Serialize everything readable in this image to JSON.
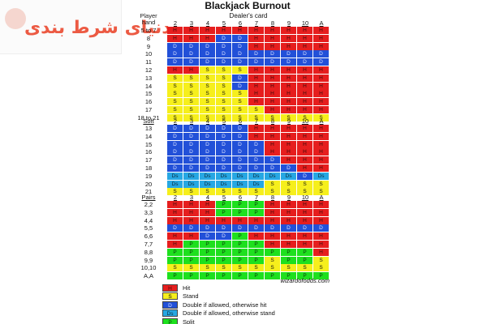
{
  "logo": {
    "text": "دنیای شرط بندی"
  },
  "title": "Blackjack Burnout",
  "dealer_label": "Dealer's card",
  "player_label": [
    "Player",
    "hand"
  ],
  "dealer_cards": [
    "2",
    "3",
    "4",
    "5",
    "6",
    "7",
    "8",
    "9",
    "10",
    "A"
  ],
  "hard": {
    "rows": [
      {
        "label": "5 to 7",
        "cells": [
          "H",
          "H",
          "H",
          "H",
          "H",
          "H",
          "H",
          "H",
          "H",
          "H"
        ]
      },
      {
        "label": "8",
        "cells": [
          "H",
          "H",
          "H",
          "D",
          "D",
          "H",
          "H",
          "H",
          "H",
          "H"
        ]
      },
      {
        "label": "9",
        "cells": [
          "D",
          "D",
          "D",
          "D",
          "D",
          "H",
          "H",
          "H",
          "H",
          "H"
        ]
      },
      {
        "label": "10",
        "cells": [
          "D",
          "D",
          "D",
          "D",
          "D",
          "D",
          "D",
          "D",
          "D",
          "D"
        ]
      },
      {
        "label": "11",
        "cells": [
          "D",
          "D",
          "D",
          "D",
          "D",
          "D",
          "D",
          "D",
          "D",
          "D"
        ]
      },
      {
        "label": "12",
        "cells": [
          "H",
          "H",
          "S",
          "S",
          "S",
          "H",
          "H",
          "H",
          "H",
          "H"
        ]
      },
      {
        "label": "13",
        "cells": [
          "S",
          "S",
          "S",
          "S",
          "D",
          "H",
          "H",
          "H",
          "H",
          "H"
        ]
      },
      {
        "label": "14",
        "cells": [
          "S",
          "S",
          "S",
          "S",
          "D",
          "H",
          "H",
          "H",
          "H",
          "H"
        ]
      },
      {
        "label": "15",
        "cells": [
          "S",
          "S",
          "S",
          "S",
          "S",
          "H",
          "H",
          "H",
          "H",
          "H"
        ]
      },
      {
        "label": "16",
        "cells": [
          "S",
          "S",
          "S",
          "S",
          "S",
          "H",
          "H",
          "H",
          "H",
          "H"
        ]
      },
      {
        "label": "17",
        "cells": [
          "S",
          "S",
          "S",
          "S",
          "S",
          "S",
          "H",
          "H",
          "H",
          "H"
        ]
      },
      {
        "label": "18 to 21",
        "cells": [
          "S",
          "S",
          "S",
          "S",
          "S",
          "S",
          "S",
          "S",
          "S",
          "S"
        ]
      }
    ]
  },
  "soft": {
    "title": "Soft",
    "rows": [
      {
        "label": "13",
        "cells": [
          "D",
          "D",
          "D",
          "D",
          "D",
          "H",
          "H",
          "H",
          "H",
          "H"
        ]
      },
      {
        "label": "14",
        "cells": [
          "D",
          "D",
          "D",
          "D",
          "D",
          "H",
          "H",
          "H",
          "H",
          "H"
        ]
      },
      {
        "label": "15",
        "cells": [
          "D",
          "D",
          "D",
          "D",
          "D",
          "D",
          "H",
          "H",
          "H",
          "H"
        ]
      },
      {
        "label": "16",
        "cells": [
          "D",
          "D",
          "D",
          "D",
          "D",
          "D",
          "H",
          "H",
          "H",
          "H"
        ]
      },
      {
        "label": "17",
        "cells": [
          "D",
          "D",
          "D",
          "D",
          "D",
          "D",
          "D",
          "H",
          "H",
          "H"
        ]
      },
      {
        "label": "18",
        "cells": [
          "D",
          "D",
          "D",
          "D",
          "D",
          "D",
          "D",
          "D",
          "H",
          "H"
        ]
      },
      {
        "label": "19",
        "cells": [
          "Ds",
          "Ds",
          "Ds",
          "Ds",
          "Ds",
          "Ds",
          "Ds",
          "Ds",
          "D",
          "Ds"
        ]
      },
      {
        "label": "20",
        "cells": [
          "Ds",
          "Ds",
          "Ds",
          "Ds",
          "Ds",
          "Ds",
          "S",
          "S",
          "S",
          "S"
        ]
      },
      {
        "label": "21",
        "cells": [
          "S",
          "S",
          "S",
          "S",
          "S",
          "S",
          "S",
          "S",
          "S",
          "S"
        ]
      }
    ]
  },
  "pairs": {
    "title": "Pairs",
    "rows": [
      {
        "label": "2,2",
        "cells": [
          "H",
          "H",
          "H",
          "P",
          "P",
          "P",
          "H",
          "H",
          "H",
          "H"
        ]
      },
      {
        "label": "3,3",
        "cells": [
          "H",
          "H",
          "H",
          "P",
          "P",
          "P",
          "H",
          "H",
          "H",
          "H"
        ]
      },
      {
        "label": "4,4",
        "cells": [
          "H",
          "H",
          "H",
          "H",
          "H",
          "H",
          "H",
          "H",
          "H",
          "H"
        ]
      },
      {
        "label": "5,5",
        "cells": [
          "D",
          "D",
          "D",
          "D",
          "D",
          "D",
          "D",
          "D",
          "D",
          "D"
        ]
      },
      {
        "label": "6,6",
        "cells": [
          "H",
          "H",
          "D",
          "D",
          "P",
          "H",
          "H",
          "H",
          "H",
          "H"
        ]
      },
      {
        "label": "7,7",
        "cells": [
          "H",
          "P",
          "P",
          "P",
          "P",
          "P",
          "H",
          "H",
          "H",
          "H"
        ]
      },
      {
        "label": "8,8",
        "cells": [
          "P",
          "P",
          "P",
          "P",
          "P",
          "P",
          "P",
          "P",
          "P",
          "H"
        ]
      },
      {
        "label": "9,9",
        "cells": [
          "P",
          "P",
          "P",
          "P",
          "P",
          "P",
          "S",
          "P",
          "P",
          "S"
        ]
      },
      {
        "label": "10,10",
        "cells": [
          "S",
          "S",
          "S",
          "S",
          "S",
          "S",
          "S",
          "S",
          "S",
          "S"
        ]
      },
      {
        "label": "A,A",
        "cells": [
          "P",
          "P",
          "P",
          "P",
          "P",
          "P",
          "P",
          "P",
          "P",
          "P"
        ]
      }
    ]
  },
  "source": "wizardofodds.com",
  "legend": [
    {
      "code": "H",
      "text": "Hit"
    },
    {
      "code": "S",
      "text": "Stand"
    },
    {
      "code": "D",
      "text": "Double if allowed, otherwise hit"
    },
    {
      "code": "Ds",
      "text": "Double if allowed, otherwise stand"
    },
    {
      "code": "P",
      "text": "Split"
    }
  ],
  "colors": {
    "hit": "#e61e1e",
    "stand": "#f6ef1c",
    "double_hit": "#2250d8",
    "double_stand": "#27a7e3",
    "split": "#1ee01e",
    "logo": "#ec5a43"
  }
}
